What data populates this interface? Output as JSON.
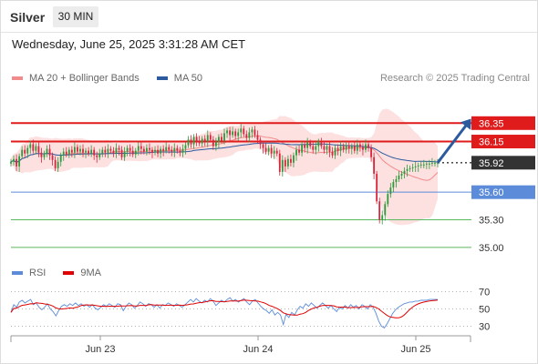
{
  "header": {
    "instrument": "Silver",
    "timeframe": "30 MIN",
    "timestamp": "Wednesday, June 25, 2025 3:31:28 AM CET"
  },
  "legend": {
    "items": [
      {
        "label": "MA 20 + Bollinger Bands",
        "color": "#f28b8b"
      },
      {
        "label": "MA 50",
        "color": "#2b5a9e"
      }
    ],
    "credit": "Research © 2025 Trading Central"
  },
  "rsi_legend": {
    "items": [
      {
        "label": "RSI",
        "color": "#5b8bd9"
      },
      {
        "label": "9MA",
        "color": "#e00000"
      }
    ]
  },
  "colors": {
    "resistance": "#e01b1b",
    "support": "#5b8bd9",
    "minor_support": "#5cb85c",
    "current_price": "#333333",
    "candle_up": "#2e9a3c",
    "candle_down": "#d7263d",
    "band_fill": "#fde0e0",
    "ma20": "#f28b8b",
    "ma50": "#2b5a9e",
    "arrow": "#2b5a9e"
  },
  "chart_data": {
    "type": "candlestick",
    "x_ticks": [
      "Jun 23",
      "Jun 24",
      "Jun 25"
    ],
    "ylim": [
      34.9,
      36.6
    ],
    "levels": [
      {
        "value": 36.35,
        "label": "36.35",
        "kind": "resistance"
      },
      {
        "value": 36.15,
        "label": "36.15",
        "kind": "resistance"
      },
      {
        "value": 35.92,
        "label": "35.92",
        "kind": "current"
      },
      {
        "value": 35.6,
        "label": "35.60",
        "kind": "support"
      },
      {
        "value": 35.3,
        "label": "35.30",
        "kind": "minor_support"
      },
      {
        "value": 35.0,
        "label": "35.00",
        "kind": "minor_support"
      }
    ],
    "forecast": {
      "from": 35.92,
      "to": 36.35,
      "direction": "up"
    },
    "closes": [
      35.93,
      35.96,
      35.88,
      35.99,
      36.06,
      36.02,
      36.08,
      36.12,
      36.05,
      36.1,
      36.03,
      35.98,
      36.02,
      36.07,
      36.0,
      35.95,
      35.86,
      35.93,
      36.0,
      36.04,
      36.01,
      36.06,
      36.03,
      36.09,
      36.04,
      36.07,
      36.03,
      36.05,
      36.02,
      36.06,
      36.0,
      35.98,
      36.02,
      36.06,
      36.03,
      36.07,
      36.05,
      36.02,
      36.08,
      36.06,
      35.98,
      36.04,
      36.08,
      36.05,
      36.01,
      36.05,
      36.1,
      36.07,
      36.04,
      36.08,
      36.06,
      36.03,
      36.06,
      36.02,
      36.07,
      36.05,
      36.09,
      36.06,
      36.04,
      36.08,
      36.05,
      36.03,
      36.07,
      36.11,
      36.17,
      36.12,
      36.2,
      36.16,
      36.13,
      36.18,
      36.15,
      36.22,
      36.17,
      36.1,
      36.14,
      36.2,
      36.16,
      36.24,
      36.27,
      36.22,
      36.26,
      36.21,
      36.25,
      36.29,
      36.23,
      36.19,
      36.25,
      36.28,
      36.22,
      36.17,
      36.12,
      36.08,
      36.04,
      36.08,
      36.02,
      36.05,
      36.02,
      35.82,
      35.95,
      35.88,
      35.96,
      35.92,
      36.0,
      36.06,
      36.03,
      36.12,
      36.08,
      36.14,
      36.1,
      36.06,
      36.1,
      36.15,
      36.1,
      36.06,
      36.1,
      36.04,
      36.0,
      36.08,
      36.05,
      36.1,
      36.06,
      36.11,
      36.07,
      36.1,
      36.05,
      36.12,
      36.09,
      36.06,
      36.12,
      36.08,
      35.98,
      35.8,
      35.5,
      35.3,
      35.35,
      35.47,
      35.58,
      35.65,
      35.71,
      35.74,
      35.78,
      35.8,
      35.83,
      35.85,
      35.86,
      35.87,
      35.88,
      35.89,
      35.9,
      35.9,
      35.91,
      35.91,
      35.92,
      35.92,
      35.92
    ],
    "rsi": {
      "ylim": [
        20,
        80
      ],
      "levels": [
        70,
        50,
        30
      ],
      "values": [
        46,
        55,
        52,
        58,
        60,
        57,
        59,
        61,
        55,
        57,
        52,
        49,
        52,
        56,
        50,
        47,
        42,
        48,
        53,
        55,
        53,
        56,
        54,
        57,
        54,
        56,
        53,
        55,
        52,
        55,
        51,
        49,
        52,
        55,
        53,
        56,
        54,
        52,
        56,
        55,
        48,
        53,
        57,
        55,
        51,
        54,
        58,
        56,
        53,
        56,
        55,
        52,
        55,
        51,
        55,
        54,
        57,
        55,
        53,
        56,
        54,
        52,
        55,
        58,
        61,
        58,
        62,
        59,
        57,
        60,
        58,
        62,
        59,
        54,
        57,
        60,
        58,
        61,
        63,
        59,
        61,
        58,
        60,
        62,
        58,
        55,
        59,
        61,
        57,
        53,
        50,
        48,
        45,
        49,
        43,
        46,
        43,
        32,
        44,
        40,
        46,
        43,
        49,
        53,
        51,
        56,
        53,
        57,
        54,
        51,
        54,
        57,
        54,
        51,
        54,
        50,
        47,
        52,
        50,
        54,
        51,
        55,
        52,
        54,
        50,
        55,
        53,
        50,
        55,
        52,
        45,
        36,
        30,
        28,
        33,
        39,
        45,
        49,
        52,
        54,
        56,
        57,
        58,
        58,
        59,
        59,
        60,
        60,
        60,
        61,
        61,
        61,
        61
      ]
    }
  }
}
